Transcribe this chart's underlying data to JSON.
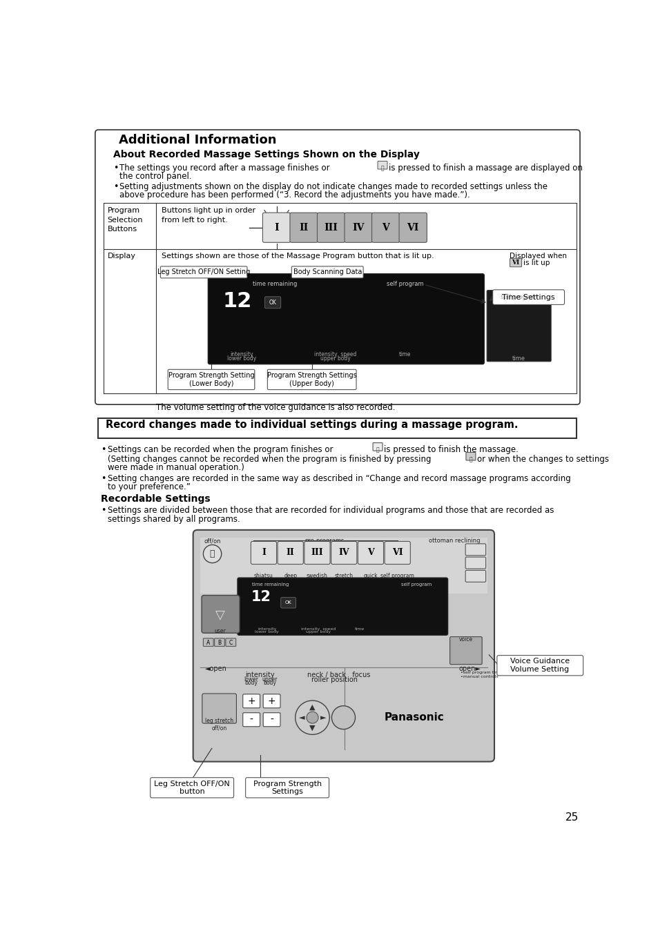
{
  "page_bg": "#ffffff",
  "page_number": "25",
  "section1_title": "Additional Information",
  "section1_subtitle": "About Recorded Massage Settings Shown on the Display",
  "section1_b1a": "The settings you record after a massage finishes or",
  "section1_b1b": "is pressed to finish a massage are displayed on",
  "section1_b1c": "the control panel.",
  "section1_b2a": "Setting adjustments shown on the display do not indicate changes made to recorded settings unless the",
  "section1_b2b": "above procedure has been performed (“3. Record the adjustments you have made.”).",
  "table_row1_col1": "Program\nSelection\nButtons",
  "table_row1_col2": "Buttons light up in order\nfrom left to right.",
  "table_row2_col1": "Display",
  "table_row2_col2": "Settings shown are those of the Massage Program button that is lit up.",
  "label_leg_stretch": "Leg Stretch OFF/ON Setting",
  "label_body_scanning": "Body Scanning Data",
  "label_displayed_when": "Displayed when",
  "label_is_lit_up": "is lit up",
  "label_time_settings": "Time Settings",
  "label_program_strength_lower": "Program Strength Setting\n(Lower Body)",
  "label_program_strength_upper": "Program Strength Settings\n(Upper Body)",
  "label_volume_note": "The volume setting of the voice guidance is also recorded.",
  "section2_title": "Record changes made to individual settings during a massage program.",
  "section2_b1a": "Settings can be recorded when the program finishes or",
  "section2_b1b": "is pressed to finish the massage.",
  "section2_b1c": "(Setting changes cannot be recorded when the program is finished by pressing",
  "section2_b1d": "or when the changes to settings",
  "section2_b1e": "were made in manual operation.)",
  "section2_b2a": "Setting changes are recorded in the same way as described in “Change and record massage programs according",
  "section2_b2b": "to your preference.”",
  "section2_sub_title": "Recordable Settings",
  "section2_sub_b1": "Settings are divided between those that are recorded for individual programs and those that are recorded as",
  "section2_sub_b2": "settings shared by all programs.",
  "label_voice_guidance": "Voice Guidance\nVolume Setting",
  "label_leg_stretch_btn": "Leg Stretch OFF/ON\nbutton",
  "label_program_strength_settings": "Program Strength\nSettings",
  "prog_btn_labels": [
    "I",
    "II",
    "III",
    "IV",
    "V",
    "VI"
  ],
  "prog_sub_labels": [
    "shiatsu",
    "deep",
    "swedish",
    "stretch",
    "quick",
    "self program"
  ],
  "abc_labels": [
    "A",
    "B",
    "C"
  ]
}
